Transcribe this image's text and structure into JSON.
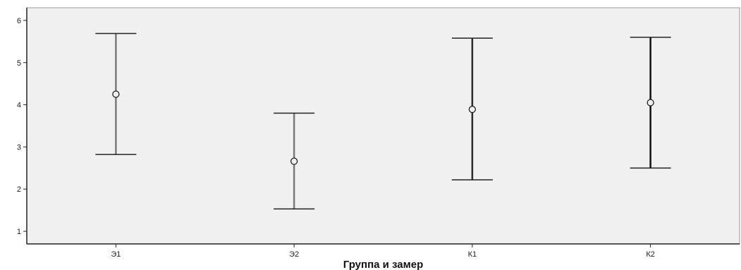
{
  "chart_data": {
    "type": "errorbar",
    "title": "",
    "xlabel": "Группа и замер",
    "ylabel": "",
    "ylim": [
      0.7,
      6.3
    ],
    "yticks": [
      1,
      2,
      3,
      4,
      5,
      6
    ],
    "grid": false,
    "legend": "none",
    "categories": [
      "Э1",
      "Э2",
      "К1",
      "К2"
    ],
    "series": [
      {
        "means": [
          4.25,
          2.66,
          3.89,
          4.05
        ],
        "lower": [
          2.82,
          1.53,
          2.22,
          2.5
        ],
        "upper": [
          5.69,
          3.8,
          5.58,
          5.6
        ]
      }
    ],
    "bar_colors": [
      "#7a7a7a",
      "#7a7a7a",
      "#2a2a2a",
      "#111111"
    ],
    "plot_background": "#f0f0f0",
    "axis_color": "#222222"
  }
}
